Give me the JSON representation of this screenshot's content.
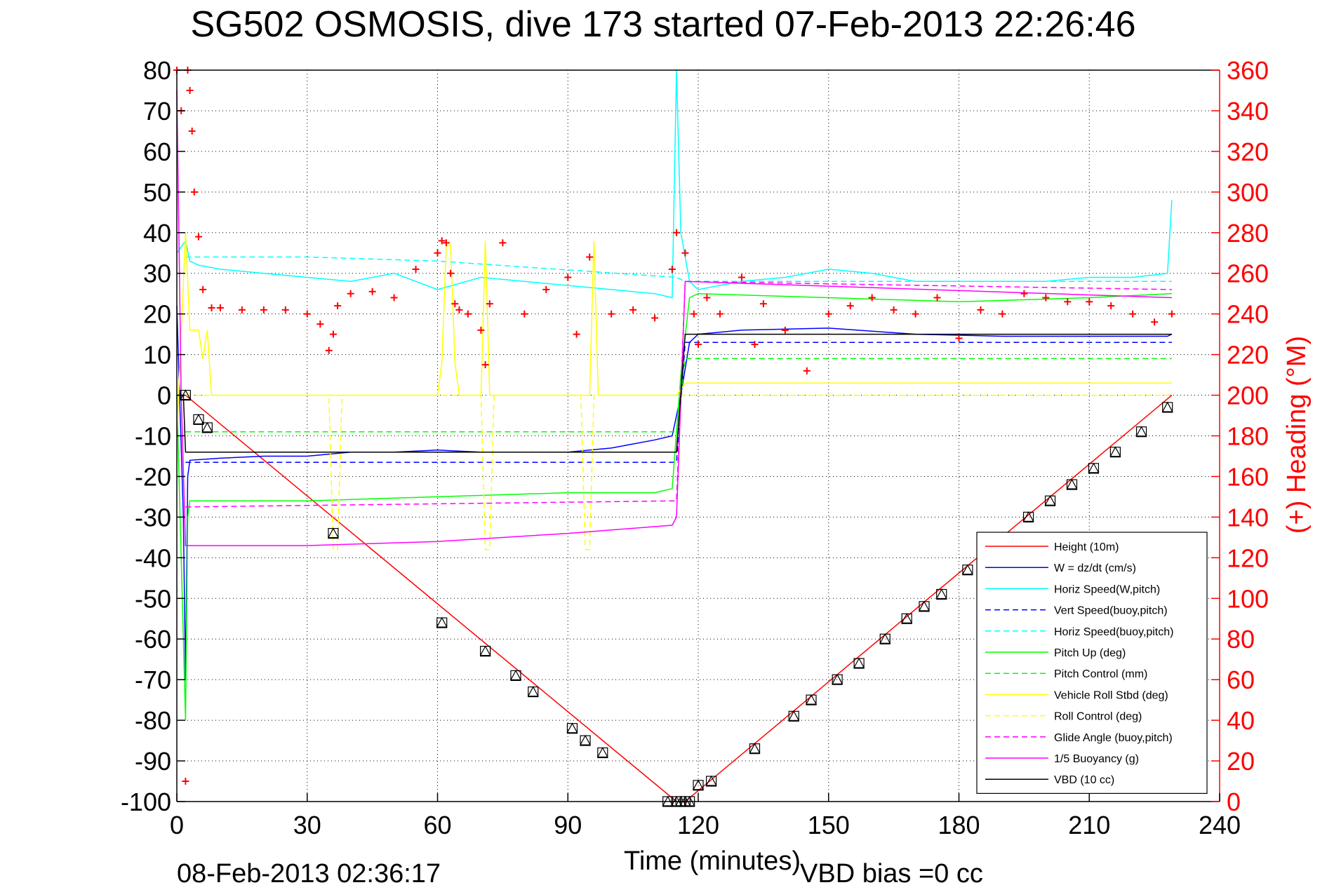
{
  "chart_data": {
    "type": "line",
    "title": "SG502 OSMOSIS, dive 173 started 07-Feb-2013 22:26:46",
    "xlabel": "Time (minutes)",
    "ylabel": "",
    "y2label": "(+) Heading (°M)",
    "footer_left": "08-Feb-2013 02:36:17",
    "footer_right": "VBD bias =0 cc",
    "xlim": [
      0,
      240
    ],
    "ylim": [
      -100,
      80
    ],
    "y2lim": [
      0,
      360
    ],
    "xticks": [
      0,
      30,
      60,
      90,
      120,
      150,
      180,
      210,
      240
    ],
    "yticks": [
      80,
      70,
      60,
      50,
      40,
      30,
      20,
      10,
      0,
      -10,
      -20,
      -30,
      -40,
      -50,
      -60,
      -70,
      -80,
      -90,
      -100
    ],
    "y2ticks": [
      360,
      340,
      320,
      300,
      280,
      260,
      240,
      220,
      200,
      180,
      160,
      140,
      120,
      100,
      80,
      60,
      40,
      20,
      0
    ],
    "grid": true,
    "legend_position": "bottom-right",
    "colors": {
      "axis": "#000000",
      "right_axis": "#ff0000",
      "grid": "#000000"
    },
    "series": [
      {
        "name": "Height (10m)",
        "color": "#ff0000",
        "style": "solid",
        "x": [
          0,
          2,
          115,
          117,
          229
        ],
        "y": [
          0,
          0,
          -100,
          -100,
          0
        ]
      },
      {
        "name": "W = dz/dt (cm/s)",
        "color": "#0000ff",
        "style": "solid",
        "x": [
          0,
          1.5,
          2,
          2.5,
          3,
          10,
          20,
          30,
          40,
          50,
          60,
          70,
          80,
          90,
          100,
          110,
          114,
          116,
          118,
          120,
          130,
          150,
          170,
          190,
          210,
          228,
          229
        ],
        "y": [
          22,
          -30,
          -70,
          -20,
          -16,
          -15.5,
          -15,
          -15,
          -14,
          -14,
          -13.5,
          -14,
          -14,
          -14,
          -13,
          -11,
          -10,
          0,
          13,
          15,
          16,
          16.5,
          15,
          14.5,
          14.5,
          14.5,
          15
        ]
      },
      {
        "name": "Horiz Speed(W,pitch)",
        "color": "#00ffff",
        "style": "solid",
        "x": [
          0,
          2,
          3,
          5,
          10,
          20,
          30,
          40,
          50,
          60,
          70,
          80,
          90,
          100,
          110,
          114,
          115,
          116,
          118,
          120,
          130,
          140,
          150,
          160,
          170,
          180,
          190,
          200,
          210,
          220,
          228,
          229
        ],
        "y": [
          35,
          38,
          33,
          32,
          31,
          30,
          29,
          28,
          30,
          26,
          29,
          28,
          27,
          26,
          25,
          24,
          80,
          40,
          28,
          26,
          28,
          29,
          31,
          30,
          28,
          28,
          28,
          28,
          29,
          29,
          30,
          48
        ]
      },
      {
        "name": "Vert Speed(buoy,pitch)",
        "color": "#0000ff",
        "style": "dashed",
        "x": [
          2,
          115,
          117,
          229
        ],
        "y": [
          -16.5,
          -16.5,
          13,
          13
        ]
      },
      {
        "name": "Horiz Speed(buoy,pitch)",
        "color": "#00ffff",
        "style": "dashed",
        "x": [
          2,
          30,
          60,
          115,
          117,
          229
        ],
        "y": [
          34,
          34,
          33,
          29,
          28,
          28
        ]
      },
      {
        "name": "Pitch Up (deg)",
        "color": "#00ff00",
        "style": "solid",
        "x": [
          0,
          1.5,
          2,
          2.5,
          3,
          10,
          30,
          60,
          90,
          110,
          114,
          116,
          118,
          120,
          150,
          180,
          210,
          229
        ],
        "y": [
          0,
          -60,
          -80,
          -30,
          -26,
          -26,
          -26,
          -25,
          -24,
          -24,
          -23,
          5,
          24,
          25,
          24,
          23,
          24,
          25
        ]
      },
      {
        "name": "Pitch Control (mm)",
        "color": "#00ff00",
        "style": "dashed",
        "x": [
          2,
          115,
          117,
          229
        ],
        "y": [
          -9,
          -9,
          9,
          9
        ]
      },
      {
        "name": "Vehicle Roll Stbd (deg)",
        "color": "#ffff00",
        "style": "solid",
        "x": [
          0,
          2,
          3,
          5,
          6,
          7,
          8,
          30,
          60,
          61,
          62,
          63,
          64,
          65,
          70,
          71,
          72,
          90,
          95,
          96,
          97,
          115,
          117,
          120,
          150,
          180,
          210,
          229
        ],
        "y": [
          -10,
          40,
          16,
          16,
          9,
          16,
          0,
          0,
          0,
          8,
          37,
          37,
          8,
          0,
          0,
          38,
          0,
          0,
          0,
          38,
          0,
          0,
          3,
          3,
          3,
          3,
          3,
          3
        ]
      },
      {
        "name": "Roll Control (deg)",
        "color": "#ffff00",
        "style": "dashed",
        "x": [
          0,
          35,
          36,
          37,
          38,
          70,
          71,
          72,
          73,
          93,
          94,
          95,
          96,
          115,
          117,
          120,
          150,
          180,
          210,
          229
        ],
        "y": [
          0,
          0,
          -38,
          -38,
          0,
          0,
          -38,
          -38,
          0,
          0,
          -38,
          -38,
          0,
          0,
          0,
          0,
          0,
          0,
          0,
          0
        ]
      },
      {
        "name": "Glide Angle (buoy,pitch)",
        "color": "#ff00ff",
        "style": "dashed",
        "x": [
          2,
          115,
          117,
          229
        ],
        "y": [
          -27.5,
          -26,
          28,
          26
        ]
      },
      {
        "name": "1/5 Buoyancy (g)",
        "color": "#ff00ff",
        "style": "solid",
        "x": [
          0,
          1,
          2,
          3,
          30,
          60,
          90,
          114,
          115,
          117,
          229
        ],
        "y": [
          75,
          0,
          -37,
          -37,
          -37,
          -36,
          -34,
          -32,
          -30,
          28,
          24
        ]
      },
      {
        "name": "VBD (10 cc)",
        "color": "#000000",
        "style": "solid",
        "x": [
          0,
          1.5,
          2,
          114,
          115,
          117,
          229
        ],
        "y": [
          0,
          0,
          -14,
          -14,
          -14,
          15,
          15
        ]
      }
    ],
    "heading": {
      "color": "#ff0000",
      "marker": "+",
      "x": [
        0,
        1,
        2,
        2.5,
        3,
        3.5,
        4,
        5,
        6,
        8,
        10,
        15,
        20,
        25,
        30,
        33,
        35,
        36,
        37,
        40,
        45,
        50,
        55,
        60,
        61,
        62,
        63,
        64,
        65,
        67,
        70,
        71,
        72,
        75,
        80,
        85,
        90,
        92,
        95,
        100,
        105,
        110,
        114,
        115,
        117,
        119,
        120,
        122,
        125,
        130,
        133,
        135,
        140,
        145,
        150,
        155,
        160,
        165,
        170,
        175,
        180,
        185,
        190,
        195,
        200,
        205,
        210,
        215,
        220,
        225,
        229
      ],
      "y": [
        360,
        340,
        10,
        360,
        350,
        330,
        300,
        278,
        252,
        243,
        243,
        242,
        242,
        242,
        240,
        235,
        222,
        230,
        244,
        250,
        251,
        248,
        262,
        270,
        276,
        275,
        260,
        245,
        242,
        240,
        232,
        215,
        245,
        275,
        240,
        252,
        258,
        230,
        268,
        240,
        242,
        238,
        262,
        280,
        270,
        240,
        225,
        248,
        240,
        258,
        225,
        245,
        232,
        212,
        240,
        244,
        248,
        242,
        240,
        248,
        228,
        242,
        240,
        250,
        248,
        246,
        246,
        244,
        240,
        236,
        240
      ]
    },
    "markers": {
      "color": "#000000",
      "x": [
        2,
        5,
        7,
        36,
        61,
        71,
        78,
        82,
        91,
        94,
        98,
        113,
        115,
        116,
        117,
        118,
        120,
        123,
        133,
        142,
        146,
        152,
        157,
        163,
        168,
        172,
        176,
        182,
        186,
        190,
        196,
        201,
        206,
        211,
        216,
        222,
        228
      ],
      "y": [
        0,
        -6,
        -8,
        -34,
        -56,
        -63,
        -69,
        -73,
        -82,
        -85,
        -88,
        -100,
        -100,
        -100,
        -100,
        -100,
        -96,
        -95,
        -87,
        -79,
        -75,
        -70,
        -66,
        -60,
        -55,
        -52,
        -49,
        -43,
        -39,
        -36,
        -30,
        -26,
        -22,
        -18,
        -14,
        -9,
        -3
      ]
    }
  }
}
